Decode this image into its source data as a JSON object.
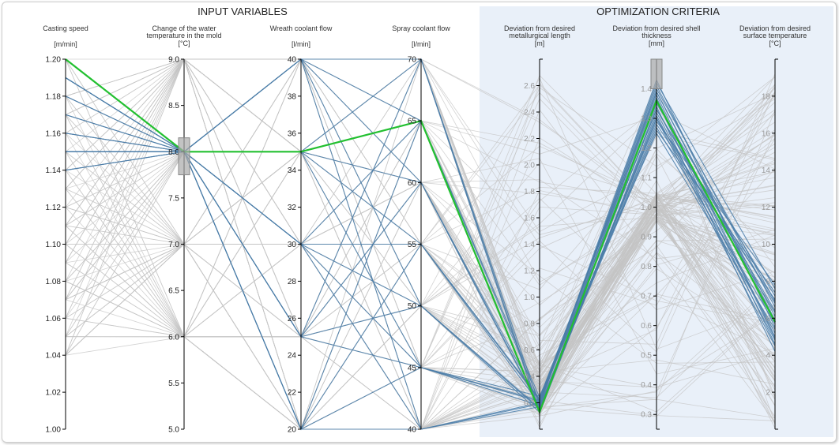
{
  "groups": {
    "input_title": "INPUT VARIABLES",
    "criteria_title": "OPTIMIZATION CRITERIA"
  },
  "colors": {
    "highlight": "#22c030",
    "selected": "#4a7ca8",
    "background_line": "#c4c4c4",
    "criteria_panel": "#e9f0f9",
    "brush": "#aaaaaa"
  },
  "chart_data": {
    "type": "parallel-coordinates",
    "axes": [
      {
        "id": "casting_speed",
        "title": [
          "Casting speed",
          ""
        ],
        "unit": "[m/min]",
        "range": [
          1.0,
          1.2
        ],
        "ticks": [
          "1.00",
          "1.02",
          "1.04",
          "1.06",
          "1.08",
          "1.10",
          "1.12",
          "1.14",
          "1.16",
          "1.18",
          "1.20"
        ],
        "tick_side": "left"
      },
      {
        "id": "water_temp_change",
        "title": [
          "Change of the water",
          "temperature in the mold"
        ],
        "unit": "[°C]",
        "range": [
          5.0,
          9.0
        ],
        "ticks": [
          "5.0",
          "5.5",
          "6.0",
          "6.5",
          "7.0",
          "7.5",
          "8.0",
          "8.5",
          "9.0"
        ],
        "tick_side": "left",
        "brush": [
          7.75,
          8.15
        ]
      },
      {
        "id": "wreath_coolant_flow",
        "title": [
          "Wreath coolant flow",
          ""
        ],
        "unit": "[l/min]",
        "range": [
          20,
          40
        ],
        "ticks": [
          "20",
          "22",
          "24",
          "26",
          "28",
          "30",
          "32",
          "34",
          "36",
          "38",
          "40"
        ],
        "tick_side": "left"
      },
      {
        "id": "spray_coolant_flow",
        "title": [
          "Spray coolant flow",
          ""
        ],
        "unit": "[l/min]",
        "range": [
          40,
          70
        ],
        "ticks": [
          "40",
          "45",
          "50",
          "55",
          "60",
          "65",
          "70"
        ],
        "tick_side": "left"
      },
      {
        "id": "dev_metallurgical_length",
        "title": [
          "Deviation from desired",
          "metallurgical length"
        ],
        "unit": "[m]",
        "range": [
          0,
          2.8
        ],
        "ticks": [
          "0.2",
          "0.4",
          "0.6",
          "0.8",
          "1.0",
          "1.2",
          "1.4",
          "1.6",
          "1.8",
          "2.0",
          "2.2",
          "2.4",
          "2.6"
        ],
        "tick_side": "left"
      },
      {
        "id": "dev_shell_thickness",
        "title": [
          "Deviation from desired shell",
          "thickness"
        ],
        "unit": "[mm]",
        "range": [
          0.25,
          1.5
        ],
        "ticks": [
          "0.3",
          "0.4",
          "0.5",
          "0.6",
          "0.7",
          "0.8",
          "0.9",
          "1.0",
          "1.1",
          "1.2",
          "1.3",
          "1.4"
        ],
        "tick_side": "left",
        "brush": [
          1.4,
          1.5
        ]
      },
      {
        "id": "dev_surface_temp",
        "title": [
          "Deviation from desired",
          "surface temperature"
        ],
        "unit": "[°C]",
        "range": [
          0,
          20
        ],
        "ticks": [
          "2",
          "4",
          "6",
          "8",
          "10",
          "12",
          "14",
          "16",
          "18"
        ],
        "tick_side": "left"
      }
    ],
    "highlighted": [
      [
        1.2,
        8.0,
        35,
        65,
        0.13,
        1.36,
        5.8
      ]
    ],
    "selected": [
      [
        1.19,
        8.0,
        40,
        70,
        0.18,
        1.42,
        7.6
      ],
      [
        1.19,
        8.0,
        35,
        60,
        0.2,
        1.33,
        6.4
      ],
      [
        1.19,
        8.0,
        30,
        55,
        0.22,
        1.38,
        5.0
      ],
      [
        1.18,
        8.0,
        25,
        50,
        0.16,
        1.3,
        4.5
      ],
      [
        1.15,
        8.0,
        20,
        45,
        0.25,
        1.25,
        5.4
      ],
      [
        1.15,
        8.0,
        40,
        40,
        0.19,
        1.4,
        6.9
      ],
      [
        1.16,
        8.0,
        35,
        70,
        0.14,
        1.31,
        4.8
      ],
      [
        1.15,
        8.0,
        30,
        65,
        0.21,
        1.35,
        7.2
      ],
      [
        1.14,
        8.0,
        25,
        60,
        0.17,
        1.27,
        5.7
      ],
      [
        1.15,
        8.0,
        20,
        55,
        0.23,
        1.39,
        6.1
      ],
      [
        1.17,
        8.0,
        40,
        50,
        0.15,
        1.34,
        4.2
      ],
      [
        1.15,
        8.0,
        35,
        45,
        0.18,
        1.29,
        7.8
      ],
      [
        1.19,
        8.0,
        30,
        40,
        0.2,
        1.41,
        6.6
      ],
      [
        1.18,
        8.0,
        25,
        70,
        0.12,
        1.32,
        5.2
      ],
      [
        1.15,
        8.0,
        20,
        65,
        0.24,
        1.37,
        4.9
      ],
      [
        1.16,
        8.0,
        40,
        60,
        0.16,
        1.28,
        7.0
      ],
      [
        1.15,
        8.0,
        35,
        55,
        0.19,
        1.43,
        5.5
      ],
      [
        1.14,
        8.0,
        30,
        50,
        0.13,
        1.3,
        6.3
      ],
      [
        1.15,
        8.0,
        25,
        45,
        0.22,
        1.36,
        4.6
      ],
      [
        1.19,
        8.0,
        20,
        40,
        0.17,
        1.26,
        7.4
      ],
      [
        1.15,
        8.0,
        40,
        65,
        0.14,
        1.39,
        5.9
      ],
      [
        1.17,
        8.0,
        30,
        45,
        0.21,
        1.33,
        6.8
      ]
    ],
    "background_count": 140,
    "background_seed": 7
  }
}
